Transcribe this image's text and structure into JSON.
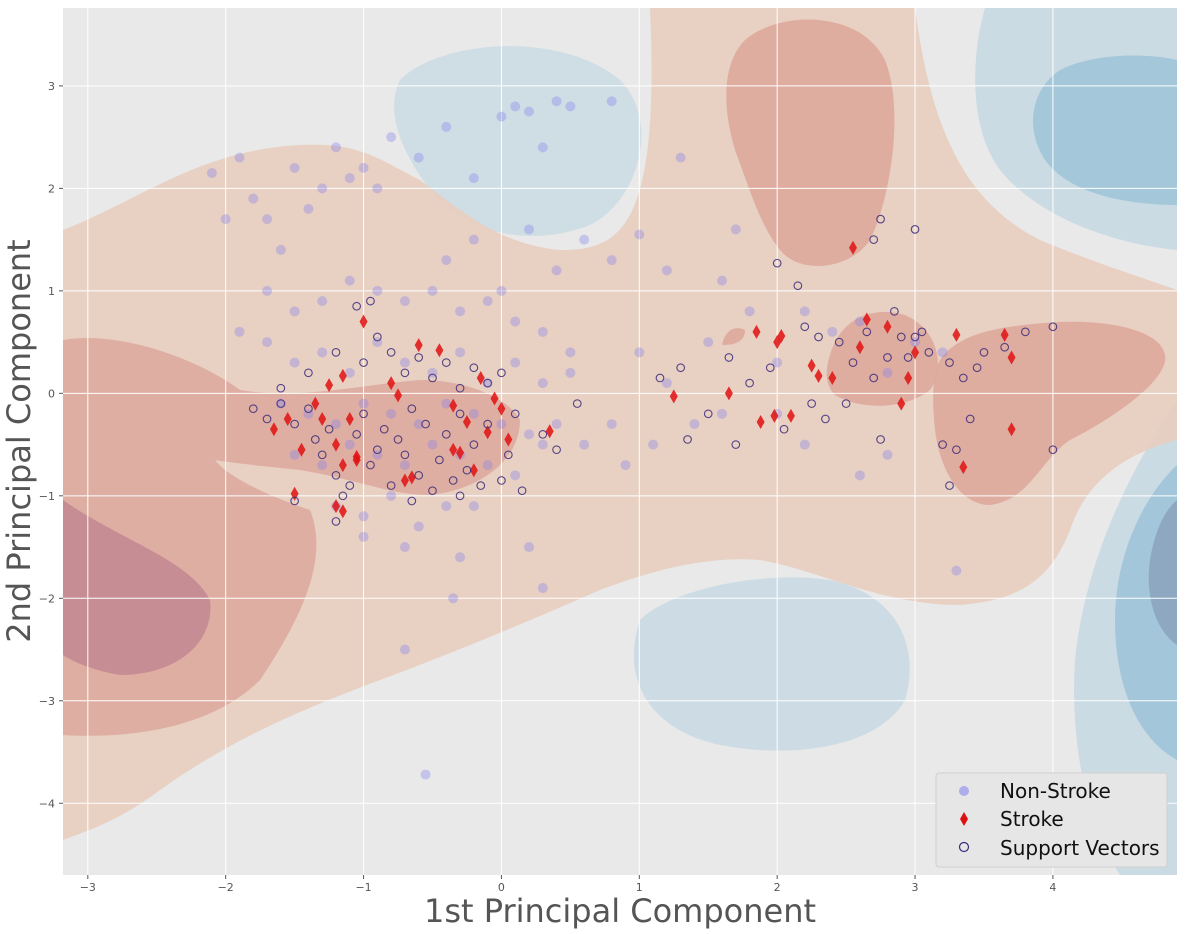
{
  "chart_data": {
    "type": "scatter",
    "xlabel": "1st Principal Component",
    "ylabel": "2nd Principal Component",
    "xlim": [
      -3.18,
      4.9
    ],
    "ylim": [
      -4.7,
      3.76
    ],
    "x_ticks": [
      -3,
      -2,
      -1,
      0,
      1,
      2,
      3,
      4
    ],
    "y_ticks": [
      -4,
      -3,
      -2,
      -1,
      0,
      1,
      2,
      3
    ],
    "x_tick_labels": [
      "−3",
      "−2",
      "−1",
      "0",
      "1",
      "2",
      "3",
      "4"
    ],
    "y_tick_labels": [
      "−4",
      "−3",
      "−2",
      "−1",
      "0",
      "1",
      "2",
      "3"
    ],
    "grid": true,
    "legend": {
      "location": "lower-right",
      "entries": [
        "Non-Stroke",
        "Stroke",
        "Support Vectors"
      ]
    },
    "background": "SVM decision-function contour regions (red = stroke side, blue = non-stroke side)",
    "colors": {
      "non_stroke": "#8080ee",
      "stroke": "#e01010",
      "support_vector_edge": "#3a2a7a",
      "red_light": "#e8cdbf",
      "red_mid": "#dda89c",
      "red_dark": "#c48a92",
      "blue_light": "#c8d9e3",
      "blue_mid": "#9fc3d8",
      "blue_dark": "#8ba4bd",
      "plot_bg": "#e9e9e9"
    },
    "series": [
      {
        "name": "Non-Stroke",
        "marker": "circle",
        "points": [
          [
            -1.1,
            2.1
          ],
          [
            -0.9,
            2.0
          ],
          [
            -0.8,
            2.5
          ],
          [
            -0.6,
            2.3
          ],
          [
            -0.4,
            2.6
          ],
          [
            -0.2,
            2.1
          ],
          [
            0.0,
            2.7
          ],
          [
            0.1,
            2.8
          ],
          [
            0.2,
            2.75
          ],
          [
            0.3,
            2.4
          ],
          [
            0.4,
            2.85
          ],
          [
            0.5,
            2.8
          ],
          [
            0.8,
            2.85
          ],
          [
            -2.1,
            2.15
          ],
          [
            -1.9,
            2.3
          ],
          [
            -1.7,
            1.7
          ],
          [
            -1.5,
            2.2
          ],
          [
            -1.3,
            2.0
          ],
          [
            -1.2,
            2.4
          ],
          [
            -1.0,
            2.2
          ],
          [
            -1.8,
            1.9
          ],
          [
            -2.0,
            1.7
          ],
          [
            -1.6,
            1.4
          ],
          [
            -1.4,
            1.8
          ],
          [
            -0.4,
            1.3
          ],
          [
            -0.2,
            1.5
          ],
          [
            0.0,
            1.0
          ],
          [
            0.2,
            1.6
          ],
          [
            0.4,
            1.2
          ],
          [
            0.6,
            1.5
          ],
          [
            0.8,
            1.3
          ],
          [
            1.0,
            1.55
          ],
          [
            1.3,
            2.3
          ],
          [
            -1.7,
            1.0
          ],
          [
            -1.5,
            0.8
          ],
          [
            -1.3,
            0.9
          ],
          [
            -1.1,
            1.1
          ],
          [
            -0.9,
            1.0
          ],
          [
            -0.7,
            0.9
          ],
          [
            -0.5,
            1.0
          ],
          [
            -0.3,
            0.8
          ],
          [
            -0.1,
            0.9
          ],
          [
            0.1,
            0.7
          ],
          [
            0.3,
            0.6
          ],
          [
            0.5,
            0.4
          ],
          [
            -1.9,
            0.6
          ],
          [
            -1.7,
            0.5
          ],
          [
            -1.5,
            0.3
          ],
          [
            -1.3,
            0.4
          ],
          [
            -1.1,
            0.2
          ],
          [
            -0.9,
            0.5
          ],
          [
            -0.7,
            0.3
          ],
          [
            -0.5,
            0.2
          ],
          [
            -0.3,
            0.4
          ],
          [
            -0.1,
            0.1
          ],
          [
            0.1,
            0.3
          ],
          [
            0.3,
            0.1
          ],
          [
            0.5,
            0.2
          ],
          [
            -1.6,
            -0.1
          ],
          [
            -1.4,
            -0.2
          ],
          [
            -1.2,
            -0.3
          ],
          [
            -1.0,
            -0.1
          ],
          [
            -0.8,
            -0.2
          ],
          [
            -0.6,
            -0.3
          ],
          [
            -0.4,
            -0.1
          ],
          [
            -0.2,
            -0.2
          ],
          [
            0.0,
            -0.3
          ],
          [
            0.2,
            -0.4
          ],
          [
            0.4,
            -0.3
          ],
          [
            -1.5,
            -0.6
          ],
          [
            -1.3,
            -0.7
          ],
          [
            -1.1,
            -0.5
          ],
          [
            -0.9,
            -0.6
          ],
          [
            -0.7,
            -0.7
          ],
          [
            -0.5,
            -0.5
          ],
          [
            -0.3,
            -0.6
          ],
          [
            -0.1,
            -0.7
          ],
          [
            0.1,
            -0.8
          ],
          [
            0.3,
            -0.5
          ],
          [
            -1.2,
            -1.1
          ],
          [
            -1.0,
            -1.2
          ],
          [
            -0.8,
            -1.0
          ],
          [
            -0.6,
            -1.3
          ],
          [
            -0.4,
            -1.1
          ],
          [
            -0.2,
            -1.1
          ],
          [
            -0.7,
            -1.5
          ],
          [
            -1.0,
            -1.4
          ],
          [
            -0.3,
            -1.6
          ],
          [
            -0.7,
            -2.5
          ],
          [
            -0.55,
            -3.72
          ],
          [
            -0.35,
            -2.0
          ],
          [
            1.0,
            0.4
          ],
          [
            1.2,
            0.1
          ],
          [
            1.1,
            -0.5
          ],
          [
            1.2,
            1.2
          ],
          [
            1.5,
            0.5
          ],
          [
            1.6,
            1.1
          ],
          [
            1.7,
            1.6
          ],
          [
            1.8,
            0.8
          ],
          [
            2.0,
            0.3
          ],
          [
            2.2,
            0.8
          ],
          [
            2.4,
            0.6
          ],
          [
            2.6,
            0.7
          ],
          [
            2.8,
            0.2
          ],
          [
            3.0,
            0.5
          ],
          [
            3.2,
            0.4
          ],
          [
            0.8,
            -0.3
          ],
          [
            0.6,
            -0.5
          ],
          [
            0.9,
            -0.7
          ],
          [
            1.4,
            -0.3
          ],
          [
            1.6,
            -0.2
          ],
          [
            2.0,
            -0.2
          ],
          [
            2.2,
            -0.5
          ],
          [
            2.6,
            -0.8
          ],
          [
            2.8,
            -0.6
          ],
          [
            3.3,
            -1.73
          ],
          [
            0.3,
            -1.9
          ],
          [
            0.2,
            -1.5
          ]
        ]
      },
      {
        "name": "Stroke",
        "marker": "diamond",
        "points": [
          [
            -1.65,
            -0.35
          ],
          [
            -1.55,
            -0.25
          ],
          [
            -1.45,
            -0.55
          ],
          [
            -1.35,
            -0.1
          ],
          [
            -1.3,
            -0.25
          ],
          [
            -1.25,
            0.08
          ],
          [
            -1.2,
            -0.5
          ],
          [
            -1.15,
            -0.7
          ],
          [
            -1.1,
            -0.25
          ],
          [
            -1.05,
            -0.65
          ],
          [
            -1.15,
            0.17
          ],
          [
            -1.0,
            0.7
          ],
          [
            -0.8,
            0.1
          ],
          [
            -0.75,
            -0.02
          ],
          [
            -0.6,
            0.47
          ],
          [
            -0.7,
            -0.85
          ],
          [
            -0.65,
            -0.82
          ],
          [
            -0.45,
            0.42
          ],
          [
            -0.35,
            -0.12
          ],
          [
            -0.3,
            -0.58
          ],
          [
            -0.2,
            -0.75
          ],
          [
            -0.15,
            0.15
          ],
          [
            -0.1,
            -0.38
          ],
          [
            -0.05,
            -0.05
          ],
          [
            0.0,
            -0.15
          ],
          [
            0.05,
            -0.45
          ],
          [
            -1.5,
            -0.98
          ],
          [
            -1.2,
            -1.1
          ],
          [
            -1.15,
            -1.15
          ],
          [
            -1.05,
            -0.62
          ],
          [
            -0.35,
            -0.55
          ],
          [
            -0.25,
            -0.28
          ],
          [
            1.25,
            -0.03
          ],
          [
            1.65,
            0.0
          ],
          [
            1.85,
            0.6
          ],
          [
            1.88,
            -0.28
          ],
          [
            1.98,
            -0.22
          ],
          [
            2.0,
            0.5
          ],
          [
            2.03,
            0.56
          ],
          [
            2.1,
            -0.22
          ],
          [
            2.25,
            0.27
          ],
          [
            2.3,
            0.17
          ],
          [
            2.4,
            0.15
          ],
          [
            2.55,
            1.42
          ],
          [
            2.6,
            0.45
          ],
          [
            2.65,
            0.72
          ],
          [
            2.8,
            0.65
          ],
          [
            2.9,
            -0.1
          ],
          [
            2.95,
            0.15
          ],
          [
            3.0,
            0.4
          ],
          [
            3.3,
            0.57
          ],
          [
            3.35,
            -0.72
          ],
          [
            3.65,
            0.57
          ],
          [
            3.7,
            0.35
          ],
          [
            3.7,
            -0.35
          ],
          [
            0.35,
            -0.37
          ]
        ]
      },
      {
        "name": "Support Vectors",
        "marker": "hollow-circle",
        "points": [
          [
            -1.8,
            -0.15
          ],
          [
            -1.7,
            -0.25
          ],
          [
            -1.6,
            -0.1
          ],
          [
            -1.5,
            -0.3
          ],
          [
            -1.4,
            -0.15
          ],
          [
            -1.35,
            -0.45
          ],
          [
            -1.3,
            -0.6
          ],
          [
            -1.25,
            -0.35
          ],
          [
            -1.2,
            -0.8
          ],
          [
            -1.1,
            -0.9
          ],
          [
            -1.05,
            -0.4
          ],
          [
            -1.0,
            -0.2
          ],
          [
            -0.95,
            -0.7
          ],
          [
            -0.9,
            -0.55
          ],
          [
            -0.85,
            -0.35
          ],
          [
            -0.8,
            -0.9
          ],
          [
            -0.75,
            -0.45
          ],
          [
            -0.7,
            -0.6
          ],
          [
            -0.65,
            -0.15
          ],
          [
            -0.6,
            -0.8
          ],
          [
            -0.55,
            -0.3
          ],
          [
            -0.5,
            -0.95
          ],
          [
            -0.45,
            -0.65
          ],
          [
            -0.4,
            -0.4
          ],
          [
            -0.35,
            -0.85
          ],
          [
            -0.3,
            -0.2
          ],
          [
            -0.25,
            -0.75
          ],
          [
            -0.2,
            -0.5
          ],
          [
            -0.15,
            -0.9
          ],
          [
            -0.1,
            -0.3
          ],
          [
            0.0,
            -0.85
          ],
          [
            0.05,
            -0.6
          ],
          [
            0.1,
            -0.2
          ],
          [
            0.15,
            -0.95
          ],
          [
            -1.6,
            0.05
          ],
          [
            -1.4,
            0.2
          ],
          [
            -1.2,
            0.4
          ],
          [
            -1.0,
            0.3
          ],
          [
            -0.9,
            0.55
          ],
          [
            -0.8,
            0.4
          ],
          [
            -0.7,
            0.2
          ],
          [
            -0.6,
            0.35
          ],
          [
            -0.5,
            0.15
          ],
          [
            -0.4,
            0.3
          ],
          [
            -0.3,
            0.05
          ],
          [
            -0.2,
            0.25
          ],
          [
            -0.1,
            0.1
          ],
          [
            0.0,
            0.2
          ],
          [
            -1.05,
            0.85
          ],
          [
            -0.95,
            0.9
          ],
          [
            -1.15,
            -1.0
          ],
          [
            -1.2,
            -1.25
          ],
          [
            -1.5,
            -1.05
          ],
          [
            -0.65,
            -1.05
          ],
          [
            -0.3,
            -1.0
          ],
          [
            0.3,
            -0.4
          ],
          [
            0.4,
            -0.55
          ],
          [
            0.55,
            -0.1
          ],
          [
            1.15,
            0.15
          ],
          [
            1.3,
            0.25
          ],
          [
            1.35,
            -0.45
          ],
          [
            1.5,
            -0.2
          ],
          [
            1.65,
            0.35
          ],
          [
            1.7,
            -0.5
          ],
          [
            1.8,
            0.1
          ],
          [
            1.95,
            0.25
          ],
          [
            2.0,
            1.27
          ],
          [
            2.05,
            -0.35
          ],
          [
            2.15,
            1.05
          ],
          [
            2.2,
            0.65
          ],
          [
            2.25,
            -0.1
          ],
          [
            2.3,
            0.55
          ],
          [
            2.35,
            -0.25
          ],
          [
            2.45,
            0.5
          ],
          [
            2.5,
            -0.1
          ],
          [
            2.55,
            0.3
          ],
          [
            2.65,
            0.6
          ],
          [
            2.7,
            0.15
          ],
          [
            2.75,
            -0.45
          ],
          [
            2.8,
            0.35
          ],
          [
            2.85,
            0.8
          ],
          [
            2.9,
            0.55
          ],
          [
            2.95,
            0.35
          ],
          [
            3.0,
            0.55
          ],
          [
            3.05,
            0.6
          ],
          [
            3.1,
            0.4
          ],
          [
            3.2,
            -0.5
          ],
          [
            3.25,
            0.3
          ],
          [
            3.3,
            -0.55
          ],
          [
            3.35,
            0.15
          ],
          [
            3.4,
            -0.25
          ],
          [
            3.45,
            0.25
          ],
          [
            3.5,
            0.4
          ],
          [
            3.65,
            0.45
          ],
          [
            3.8,
            0.6
          ],
          [
            4.0,
            -0.55
          ],
          [
            4.0,
            0.65
          ],
          [
            2.75,
            1.7
          ],
          [
            3.0,
            1.6
          ],
          [
            2.7,
            1.5
          ],
          [
            3.25,
            -0.9
          ]
        ]
      }
    ]
  }
}
